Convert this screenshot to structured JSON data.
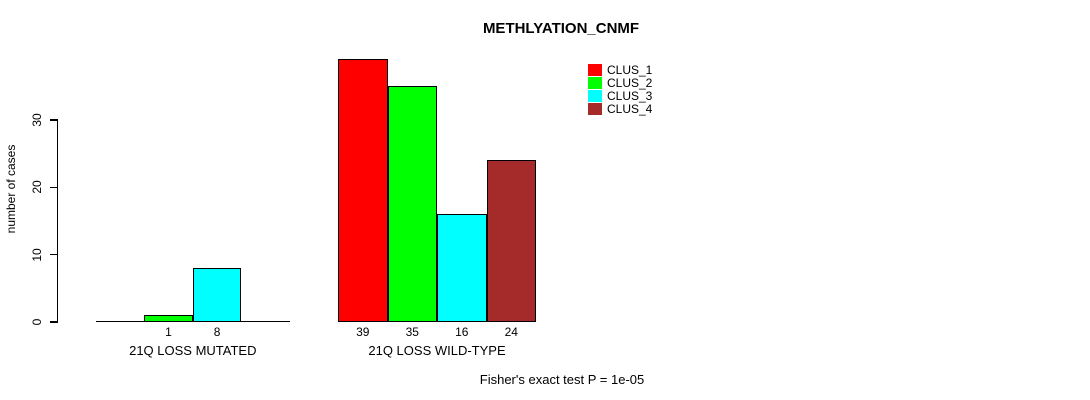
{
  "chart_data": {
    "type": "bar",
    "title": "METHLYATION_CNMF",
    "ylabel": "number of cases",
    "xlabel": "",
    "categories": [
      "21Q LOSS MUTATED",
      "21Q LOSS WILD-TYPE"
    ],
    "series": [
      {
        "name": "CLUS_1",
        "color": "#FF0000",
        "values": [
          0,
          39
        ]
      },
      {
        "name": "CLUS_2",
        "color": "#00FF00",
        "values": [
          1,
          35
        ]
      },
      {
        "name": "CLUS_3",
        "color": "#00FFFF",
        "values": [
          8,
          16
        ]
      },
      {
        "name": "CLUS_4",
        "color": "#A52A2A",
        "values": [
          0,
          24
        ]
      }
    ],
    "bar_value_labels": [
      "1",
      "8",
      "39",
      "35",
      "16",
      "24"
    ],
    "yticks": [
      "0",
      "10",
      "20",
      "30"
    ],
    "ylim": [
      0,
      30
    ],
    "grid": false,
    "legend_position": "top-right",
    "legend_entries": [
      "CLUS_1",
      "CLUS_2",
      "CLUS_3",
      "CLUS_4"
    ],
    "annotation": "Fisher's exact test P = 1e-05",
    "background_color": "#FFFFFF",
    "axis_color": "#000000"
  }
}
